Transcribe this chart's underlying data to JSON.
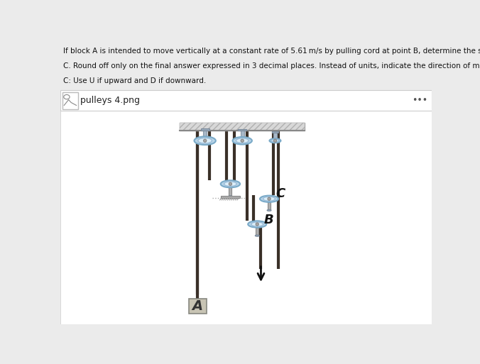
{
  "bg_color": "#ebebeb",
  "header_text_lines": [
    "If block A is intended to move vertically at a constant rate of 5.61 m/s by pulling cord at point B, determine the speed (m/s) of pulley",
    "C. Round off only on the final answer expressed in 3 decimal places. Instead of units, indicate the direction of movement of pulley",
    "C: Use U if upward and D if downward."
  ],
  "file_label": "pulleys 4.png",
  "rope_color": "#3a3028",
  "pulley_outer_color": "#b8d4e8",
  "pulley_rim_color": "#7aaac8",
  "pulley_inner_color": "#ddeef8",
  "pulley_hub_color": "#a8a8a8",
  "axle_color": "#b0b0b0",
  "ceiling_top": "#d8d8d8",
  "ceiling_hatch": "#c0c0c0",
  "block_face": "#c8c4b4",
  "block_edge": "#888880",
  "block_text": "A",
  "label_B": "B",
  "label_C": "C",
  "arrow_color": "#111111",
  "floor_color": "#b8b8b8",
  "white_bg": "#ffffff"
}
